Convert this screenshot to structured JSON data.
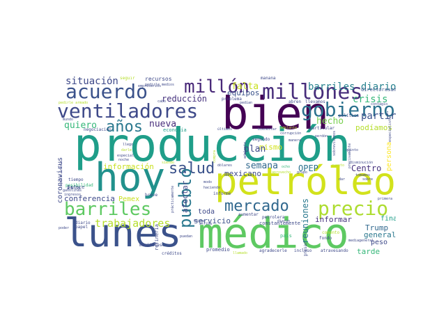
{
  "words": [
    {
      "text": "producción",
      "color": "#1f9e89"
    },
    {
      "text": "bien",
      "color": "#440154"
    },
    {
      "text": "hoy",
      "color": "#21918c"
    },
    {
      "text": "petróleo",
      "color": "#d2e21b"
    },
    {
      "text": "lunes",
      "color": "#3b528b"
    },
    {
      "text": "médico",
      "color": "#5ec962"
    },
    {
      "text": "ventiladores",
      "color": "#3e4989"
    },
    {
      "text": "acuerdo",
      "color": "#3b528b"
    },
    {
      "text": "millón",
      "color": "#482878"
    },
    {
      "text": "millones",
      "color": "#472d7b"
    },
    {
      "text": "gobierno",
      "color": "#2c728e"
    },
    {
      "text": "barriles",
      "color": "#5ec962"
    },
    {
      "text": "precio",
      "color": "#addc30"
    },
    {
      "text": "mercado",
      "color": "#31688e"
    },
    {
      "text": "salud",
      "color": "#3b528b"
    },
    {
      "text": "pueblo",
      "color": "#2a788e"
    },
    {
      "text": "años",
      "color": "#2a788e"
    },
    {
      "text": "trabajadores",
      "color": "#b5de2b"
    },
    {
      "text": "barriles diarios",
      "color": "#26828e"
    },
    {
      "text": "situación",
      "color": "#3e4989"
    },
    {
      "text": "falta",
      "color": "#c8e020"
    },
    {
      "text": "crisis",
      "color": "#35b779"
    },
    {
      "text": "partir",
      "color": "#3b528b"
    },
    {
      "text": "quiero",
      "color": "#35b779"
    },
    {
      "text": "nueva",
      "color": "#472d7b"
    },
    {
      "text": "reducción",
      "color": "#46327e"
    },
    {
      "text": "equipos",
      "color": "#3b528b"
    },
    {
      "text": "hecho",
      "color": "#7ad151"
    },
    {
      "text": "podíamos",
      "color": "#b5de2b"
    },
    {
      "text": "mismo",
      "color": "#d2e21b"
    },
    {
      "text": "plan",
      "color": "#3e4989"
    },
    {
      "text": "semana",
      "color": "#31688e"
    },
    {
      "text": "OPEP",
      "color": "#2c728e"
    },
    {
      "text": "Centro",
      "color": "#46327e"
    },
    {
      "text": "información",
      "color": "#c8e020"
    },
    {
      "text": "mexicano",
      "color": "#3e4989"
    },
    {
      "text": "coronavirus",
      "color": "#3e4989"
    },
    {
      "text": "conferencia",
      "color": "#3e4989"
    },
    {
      "text": "Pemex",
      "color": "#c8e020"
    },
    {
      "text": "afectar",
      "color": "#414487"
    },
    {
      "text": "reuniones",
      "color": "#2a788e"
    },
    {
      "text": "informar",
      "color": "#46327e"
    },
    {
      "text": "Trump",
      "color": "#31688e"
    },
    {
      "text": "general",
      "color": "#2a788e"
    },
    {
      "text": "peso",
      "color": "#3e4989"
    },
    {
      "text": "tarde",
      "color": "#35b779"
    },
    {
      "text": "final",
      "color": "#1f9e89"
    },
    {
      "text": "servicio",
      "color": "#3b528b"
    },
    {
      "text": "toda",
      "color": "#3e4989"
    },
    {
      "text": "persona",
      "color": "#fde725"
    },
    {
      "text": "recursos",
      "color": "#3e4989"
    },
    {
      "text": "seguir",
      "color": "#b5de2b"
    },
    {
      "text": "mañana",
      "color": "#3e4989"
    },
    {
      "text": "director",
      "color": "#3b528b"
    },
    {
      "text": "asunto",
      "color": "#3b528b"
    },
    {
      "text": "economía",
      "color": "#1f9e89"
    },
    {
      "text": "negociación",
      "color": "#3e4989"
    },
    {
      "text": "Isla",
      "color": "#3b528b"
    },
    {
      "text": "parece",
      "color": "#3e4989"
    },
    {
      "text": "posibilidad",
      "color": "#35b779"
    },
    {
      "text": "constantemente",
      "color": "#3e4989"
    },
    {
      "text": "diario",
      "color": "#3e4989"
    },
    {
      "text": "refinería",
      "color": "#3e4989"
    },
    {
      "text": "promedio",
      "color": "#3e4989"
    },
    {
      "text": "créditos",
      "color": "#3e4989"
    },
    {
      "text": "monitores",
      "color": "#3e4989"
    },
    {
      "text": "llamado",
      "color": "#b5de2b"
    },
    {
      "text": "agradecerle",
      "color": "#3e4989"
    },
    {
      "text": "incluso",
      "color": "#3e4989"
    },
    {
      "text": "atravesando",
      "color": "#3e4989"
    },
    {
      "text": "comento",
      "color": "#b5de2b"
    },
    {
      "text": "fondo",
      "color": "#3e4989"
    },
    {
      "text": "país",
      "color": "#35b779"
    },
    {
      "text": "abren",
      "color": "#3e4989"
    },
    {
      "text": "llevamos",
      "color": "#3e4989"
    },
    {
      "text": "pedirle",
      "color": "#3e4989"
    },
    {
      "text": "medios",
      "color": "#3e4989"
    },
    {
      "text": "problema",
      "color": "#3e4989"
    },
    {
      "text": "pedían",
      "color": "#3e4989"
    },
    {
      "text": "empresarios",
      "color": "#3e4989"
    },
    {
      "text": "cabo",
      "color": "#3e4989"
    },
    {
      "text": "contagio",
      "color": "#3e4989"
    },
    {
      "text": "política",
      "color": "#3e4989"
    },
    {
      "text": "mundo",
      "color": "#3e4989"
    },
    {
      "text": "particular",
      "color": "#3e4989"
    },
    {
      "text": "bienestar",
      "color": "#3e4989"
    },
    {
      "text": "adelante",
      "color": "#b5de2b"
    },
    {
      "text": "últimos",
      "color": "#3e4989"
    },
    {
      "text": "segundo",
      "color": "#3e4989"
    },
    {
      "text": "manera",
      "color": "#3e4989"
    },
    {
      "text": "perdón",
      "color": "#3e4989"
    },
    {
      "text": "especial",
      "color": "#3e4989"
    },
    {
      "text": "noche",
      "color": "#3e4989"
    },
    {
      "text": "darle",
      "color": "#b5de2b"
    },
    {
      "text": "llego",
      "color": "#3e4989"
    },
    {
      "text": "siendo",
      "color": "#b5de2b"
    },
    {
      "text": "dólares",
      "color": "#3e4989"
    },
    {
      "text": "ocho",
      "color": "#35b779"
    },
    {
      "text": "aprovecho",
      "color": "#b5de2b"
    },
    {
      "text": "grupo",
      "color": "#3e4989"
    },
    {
      "text": "corrupción",
      "color": "#3e4989"
    },
    {
      "text": "cuento",
      "color": "#b5de2b"
    },
    {
      "text": "tiempo",
      "color": "#3e4989"
    },
    {
      "text": "ingresos",
      "color": "#3e4989"
    },
    {
      "text": "gasolinas",
      "color": "#3e4989"
    },
    {
      "text": "breve",
      "color": "#3e4989"
    },
    {
      "text": "modo",
      "color": "#3e4989"
    },
    {
      "text": "haciendo",
      "color": "#3e4989"
    },
    {
      "text": "informe",
      "color": "#3e4989"
    },
    {
      "text": "arriba",
      "color": "#3e4989"
    },
    {
      "text": "China",
      "color": "#3e4989"
    },
    {
      "text": "puedan",
      "color": "#3e4989"
    },
    {
      "text": "petrolera",
      "color": "#3e4989"
    },
    {
      "text": "diaron",
      "color": "#3e4989"
    },
    {
      "text": "aumentar",
      "color": "#3e4989"
    },
    {
      "text": "regresar",
      "color": "#3e4989"
    },
    {
      "text": "primera",
      "color": "#3e4989"
    },
    {
      "text": "dar",
      "color": "#3e4989"
    },
    {
      "text": "papel",
      "color": "#3e4989"
    },
    {
      "text": "poder",
      "color": "#3e4989"
    },
    {
      "text": "disminución",
      "color": "#3e4989"
    },
    {
      "text": "prácticamente",
      "color": "#3e4989"
    },
    {
      "text": "compra",
      "color": "#b5de2b"
    },
    {
      "text": "sobre",
      "color": "#3e4989"
    },
    {
      "text": "tomamos",
      "color": "#3e4989"
    },
    {
      "text": "capitalizable",
      "color": "#3e4989"
    },
    {
      "text": "especialistas",
      "color": "#3e4989"
    },
    {
      "text": "precisamente",
      "color": "#3e4989"
    },
    {
      "text": "mediageneral",
      "color": "#3e4989"
    },
    {
      "text": "sobrevivimos",
      "color": "#3e4989"
    },
    {
      "text": "adelante.",
      "color": "#3e4989"
    },
    {
      "text": "quinto",
      "color": "#3e4989"
    },
    {
      "text": "pedirle armado",
      "color": "#b5de2b"
    }
  ]
}
